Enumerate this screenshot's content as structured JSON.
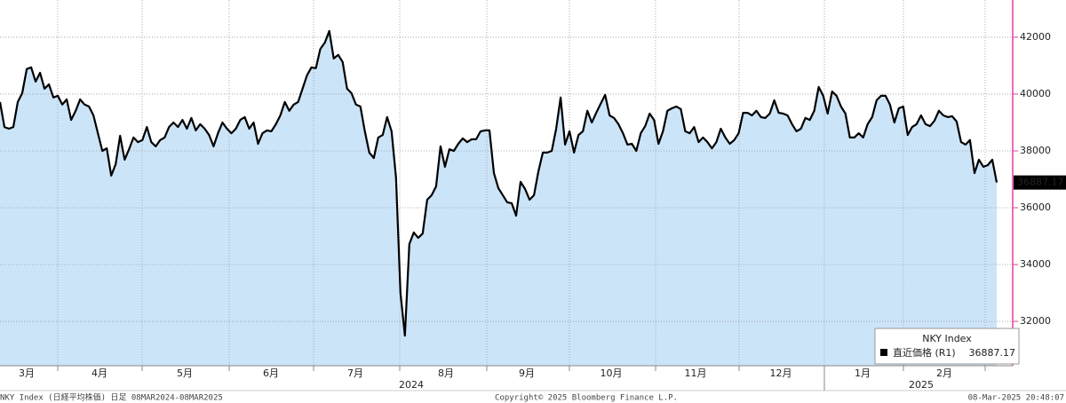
{
  "chart_data": {
    "type": "line",
    "series": [
      {
        "name": "直近価格 (R1)",
        "color": "#000000",
        "fill": "#cce4f8",
        "values": [
          39720,
          38840,
          38780,
          38840,
          39720,
          40030,
          40880,
          40940,
          40440,
          40750,
          40190,
          40340,
          39880,
          39940,
          39630,
          39810,
          39090,
          39410,
          39810,
          39630,
          39560,
          39250,
          38620,
          38000,
          38090,
          37130,
          37530,
          38530,
          37690,
          38060,
          38470,
          38310,
          38380,
          38840,
          38310,
          38160,
          38380,
          38470,
          38840,
          39000,
          38840,
          39090,
          38780,
          39160,
          38720,
          38940,
          38780,
          38560,
          38160,
          38620,
          39000,
          38780,
          38620,
          38780,
          39090,
          39190,
          38780,
          39000,
          38250,
          38620,
          38720,
          38690,
          38940,
          39250,
          39720,
          39410,
          39630,
          39720,
          40190,
          40660,
          40940,
          40910,
          41590,
          41810,
          42220,
          41250,
          41380,
          41130,
          40190,
          40030,
          39630,
          39560,
          38690,
          37940,
          37750,
          38470,
          38560,
          39190,
          38690,
          37060,
          33000,
          31500,
          34720,
          35130,
          34940,
          35090,
          36280,
          36440,
          36750,
          38160,
          37440,
          38060,
          38000,
          38250,
          38440,
          38310,
          38410,
          38410,
          38690,
          38720,
          38720,
          37220,
          36690,
          36440,
          36190,
          36160,
          35720,
          36910,
          36660,
          36280,
          36440,
          37280,
          37940,
          37940,
          38000,
          38780,
          39880,
          38220,
          38690,
          37940,
          38560,
          38690,
          39410,
          39000,
          39340,
          39660,
          39970,
          39250,
          39160,
          38940,
          38620,
          38220,
          38250,
          38000,
          38620,
          38870,
          39310,
          39090,
          38250,
          38690,
          39410,
          39500,
          39560,
          39470,
          38690,
          38620,
          38840,
          38310,
          38470,
          38310,
          38090,
          38310,
          38780,
          38470,
          38250,
          38380,
          38620,
          39340,
          39340,
          39250,
          39410,
          39190,
          39160,
          39310,
          39780,
          39340,
          39310,
          39250,
          38940,
          38690,
          38780,
          39160,
          39090,
          39410,
          40250,
          39940,
          39310,
          40090,
          39940,
          39560,
          39310,
          38470,
          38470,
          38620,
          38470,
          38940,
          39190,
          39780,
          39940,
          39940,
          39630,
          39000,
          39500,
          39560,
          38560,
          38840,
          38940,
          39250,
          38940,
          38870,
          39060,
          39410,
          39250,
          39190,
          39220,
          39030,
          38310,
          38220,
          38380,
          37220,
          37690,
          37440,
          37500,
          37690,
          36887.17
        ]
      }
    ],
    "ylim": [
      30440,
      43310
    ],
    "yticks": [
      32000,
      34000,
      36000,
      38000,
      40000,
      42000
    ],
    "grid": true,
    "axis_color": "#e0409a",
    "month_labels": [
      "3月",
      "4月",
      "5月",
      "6月",
      "7月",
      "8月",
      "9月",
      "10月",
      "11月",
      "12月",
      "1月",
      "2月"
    ],
    "year_labels": [
      "2024",
      "2025"
    ],
    "legend_title": "NKY Index",
    "legend": "bottom-right"
  },
  "footer": {
    "left": "NKY Index (日経平均株価) 日足 08MAR2024-08MAR2025",
    "center": "Copyright© 2025 Bloomberg Finance L.P.",
    "right": "08-Mar-2025 20:48:07"
  }
}
